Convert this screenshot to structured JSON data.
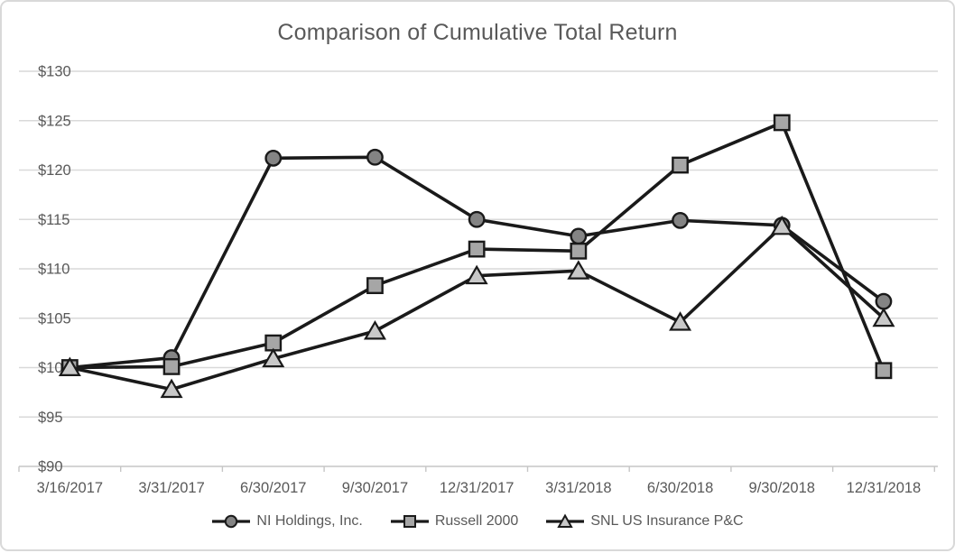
{
  "chart_data": {
    "type": "line",
    "title": "Comparison of Cumulative Total Return",
    "categories": [
      "3/16/2017",
      "3/31/2017",
      "6/30/2017",
      "9/30/2017",
      "12/31/2017",
      "3/31/2018",
      "6/30/2018",
      "9/30/2018",
      "12/31/2018"
    ],
    "series": [
      {
        "name": "NI Holdings, Inc.",
        "marker": "circle",
        "marker_fill": "#848484",
        "values": [
          100.0,
          101.0,
          121.2,
          121.3,
          115.0,
          113.3,
          114.9,
          114.4,
          106.7
        ]
      },
      {
        "name": "Russell 2000",
        "marker": "square",
        "marker_fill": "#A6A6A6",
        "values": [
          100.0,
          100.1,
          102.5,
          108.3,
          112.0,
          111.8,
          120.5,
          124.8,
          99.7
        ]
      },
      {
        "name": "SNL US Insurance P&C",
        "marker": "triangle",
        "marker_fill": "#C8C8C8",
        "values": [
          100.0,
          97.8,
          100.9,
          103.7,
          109.3,
          109.8,
          104.6,
          114.3,
          105.0
        ]
      }
    ],
    "xlabel": "",
    "ylabel": "",
    "ylim": [
      90,
      130
    ],
    "y_tick_step": 5,
    "y_tick_prefix": "$",
    "y_tick_labels": [
      "$90",
      "$95",
      "$100",
      "$105",
      "$110",
      "$115",
      "$120",
      "$125",
      "$130"
    ],
    "grid": true,
    "legend_position": "bottom",
    "colors": {
      "line": "#1A1A1A",
      "grid": "#D9D9D9",
      "axis": "#C6C6C6",
      "label": "#595959",
      "title": "#595959",
      "frame_border": "#D9D9D9",
      "background": "#FFFFFF"
    }
  }
}
